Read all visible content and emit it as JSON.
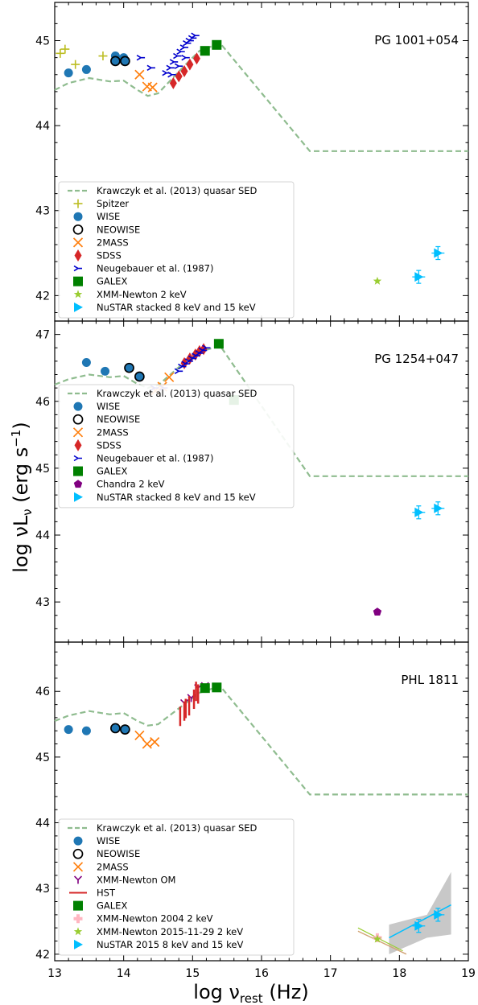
{
  "figure": {
    "ylabel_main": "log νL",
    "ylabel_sub": "ν",
    "ylabel_units": " (erg s",
    "ylabel_exp": "−1",
    "ylabel_close": ")",
    "xlabel_main": "log ν",
    "xlabel_sub": "rest",
    "xlabel_units": " (Hz)"
  },
  "colors": {
    "sed": "#8fbc8f",
    "spitzer": "#bcbd22",
    "wise": "#1f77b4",
    "neowise": "#000000",
    "twomass": "#ff7f0e",
    "sdss": "#d62728",
    "neugebauer": "#0000cd",
    "galex": "#008000",
    "xmm2kev": "#9acd32",
    "chandra": "#800080",
    "nustar": "#00bfff",
    "xmm_om": "#800080",
    "hst": "#d62728",
    "xmm2004": "#ffb6c1"
  },
  "chart_data": [
    {
      "type": "scatter",
      "title": "PG 1001+054",
      "xlim": [
        13,
        19
      ],
      "ylim": [
        41.7,
        45.45
      ],
      "xticks": [
        13,
        14,
        15,
        16,
        17,
        18,
        19
      ],
      "yticks": [
        42,
        43,
        44,
        45
      ],
      "legend_position": "lower-left",
      "sed": {
        "name": "Krawczyk et al. (2013) quasar SED",
        "x": [
          13.0,
          13.2,
          13.5,
          13.8,
          14.0,
          14.2,
          14.35,
          14.5,
          14.7,
          14.9,
          15.1,
          15.4,
          16.7,
          19.0
        ],
        "y": [
          44.42,
          44.5,
          44.56,
          44.52,
          44.53,
          44.42,
          44.35,
          44.38,
          44.55,
          44.72,
          44.88,
          44.97,
          43.7,
          43.7
        ]
      },
      "series": [
        {
          "name": "Spitzer",
          "marker": "plus",
          "color_key": "spitzer",
          "x": [
            13.08,
            13.15,
            13.3,
            13.7
          ],
          "y": [
            44.85,
            44.9,
            44.72,
            44.82
          ]
        },
        {
          "name": "WISE",
          "marker": "circle",
          "color_key": "wise",
          "x": [
            13.2,
            13.46,
            13.88,
            14.0
          ],
          "y": [
            44.62,
            44.66,
            44.82,
            44.8
          ]
        },
        {
          "name": "NEOWISE",
          "marker": "open-circle",
          "color_key": "neowise",
          "x": [
            13.88,
            14.02
          ],
          "y": [
            44.76,
            44.76
          ]
        },
        {
          "name": "2MASS",
          "marker": "x",
          "color_key": "twomass",
          "x": [
            14.23,
            14.34,
            14.42
          ],
          "y": [
            44.6,
            44.46,
            44.45
          ]
        },
        {
          "name": "SDSS",
          "marker": "diamond",
          "color_key": "sdss",
          "x": [
            14.72,
            14.8,
            14.88,
            14.96,
            15.06
          ],
          "y": [
            44.5,
            44.58,
            44.64,
            44.72,
            44.79
          ]
        },
        {
          "name": "Neugebauer et al. (1987)",
          "marker": "tri",
          "color_key": "neugebauer",
          "x": [
            14.25,
            14.4,
            14.62,
            14.68,
            14.73,
            14.78,
            14.83,
            14.88,
            14.92,
            14.96,
            15.0,
            15.04,
            14.7,
            14.8,
            14.9
          ],
          "y": [
            44.8,
            44.68,
            44.62,
            44.68,
            44.75,
            44.82,
            44.87,
            44.92,
            44.97,
            45.0,
            45.03,
            45.06,
            44.6,
            44.7,
            44.8
          ]
        },
        {
          "name": "GALEX",
          "marker": "square",
          "color_key": "galex",
          "x": [
            15.18,
            15.35
          ],
          "y": [
            44.88,
            44.95
          ]
        },
        {
          "name": "XMM-Newton 2 keV",
          "marker": "star",
          "color_key": "xmm2kev",
          "x": [
            17.68
          ],
          "y": [
            42.17
          ]
        },
        {
          "name": "NuSTAR stacked 8 keV and 15 keV",
          "marker": "triangle-right",
          "color_key": "nustar",
          "x": [
            18.28,
            18.56
          ],
          "y": [
            42.22,
            42.5
          ]
        }
      ]
    },
    {
      "type": "scatter",
      "title": "PG 1254+047",
      "xlim": [
        13,
        19
      ],
      "ylim": [
        42.4,
        47.2
      ],
      "xticks": [
        13,
        14,
        15,
        16,
        17,
        18,
        19
      ],
      "yticks": [
        43,
        44,
        45,
        46,
        47
      ],
      "legend_position": "lower-left",
      "sed": {
        "name": "Krawczyk et al. (2013) quasar SED",
        "x": [
          13.0,
          13.2,
          13.5,
          13.8,
          14.0,
          14.2,
          14.35,
          14.5,
          14.7,
          14.9,
          15.1,
          15.4,
          16.7,
          19.0
        ],
        "y": [
          46.25,
          46.33,
          46.4,
          46.36,
          46.38,
          46.26,
          46.2,
          46.24,
          46.42,
          46.6,
          46.74,
          46.83,
          44.88,
          44.88
        ]
      },
      "series": [
        {
          "name": "WISE",
          "marker": "circle",
          "color_key": "wise",
          "x": [
            13.46,
            13.73,
            14.08,
            14.23
          ],
          "y": [
            46.58,
            46.45,
            46.5,
            46.37
          ]
        },
        {
          "name": "NEOWISE",
          "marker": "open-circle",
          "color_key": "neowise",
          "x": [
            14.08,
            14.23
          ],
          "y": [
            46.5,
            46.37
          ]
        },
        {
          "name": "2MASS",
          "marker": "x",
          "color_key": "twomass",
          "x": [
            14.46,
            14.56,
            14.66
          ],
          "y": [
            46.16,
            46.22,
            46.36
          ]
        },
        {
          "name": "SDSS",
          "marker": "diamond",
          "color_key": "sdss",
          "x": [
            14.88,
            14.96,
            15.04,
            15.1,
            15.16
          ],
          "y": [
            46.57,
            46.64,
            46.7,
            46.75,
            46.78
          ]
        },
        {
          "name": "Neugebauer et al. (1987)",
          "marker": "tri",
          "color_key": "neugebauer",
          "x": [
            14.45,
            14.58,
            14.8,
            14.85,
            14.9,
            14.95,
            15.0,
            15.05,
            15.1,
            15.15,
            15.2
          ],
          "y": [
            46.2,
            46.2,
            46.45,
            46.52,
            46.56,
            46.6,
            46.64,
            46.68,
            46.72,
            46.76,
            46.8
          ]
        },
        {
          "name": "GALEX",
          "marker": "square",
          "color_key": "galex",
          "x": [
            15.38,
            15.6
          ],
          "y": [
            46.86,
            46.02
          ]
        },
        {
          "name": "Chandra 2 keV",
          "marker": "pentagon",
          "color_key": "chandra",
          "x": [
            17.68
          ],
          "y": [
            42.85
          ]
        },
        {
          "name": "NuSTAR stacked 8 keV and 15 keV",
          "marker": "triangle-right",
          "color_key": "nustar",
          "x": [
            18.28,
            18.56
          ],
          "y": [
            44.34,
            44.4
          ]
        }
      ]
    },
    {
      "type": "scatter",
      "title": "PHL 1811",
      "xlim": [
        13,
        19
      ],
      "ylim": [
        41.9,
        46.75
      ],
      "xticks": [
        13,
        14,
        15,
        16,
        17,
        18,
        19
      ],
      "yticks": [
        42,
        43,
        44,
        45,
        46
      ],
      "legend_position": "lower-left",
      "sed": {
        "name": "Krawczyk et al. (2013) quasar SED",
        "x": [
          13.0,
          13.2,
          13.5,
          13.8,
          14.0,
          14.2,
          14.35,
          14.5,
          14.7,
          14.9,
          15.1,
          15.4,
          16.7,
          19.0
        ],
        "y": [
          45.55,
          45.63,
          45.7,
          45.65,
          45.67,
          45.55,
          45.48,
          45.5,
          45.66,
          45.82,
          45.98,
          46.08,
          44.43,
          44.43
        ]
      },
      "series": [
        {
          "name": "WISE",
          "marker": "circle",
          "color_key": "wise",
          "x": [
            13.2,
            13.46,
            13.88,
            14.02
          ],
          "y": [
            45.42,
            45.4,
            45.44,
            45.42
          ]
        },
        {
          "name": "NEOWISE",
          "marker": "open-circle",
          "color_key": "neowise",
          "x": [
            13.88,
            14.02
          ],
          "y": [
            45.44,
            45.42
          ]
        },
        {
          "name": "2MASS",
          "marker": "x",
          "color_key": "twomass",
          "x": [
            14.23,
            14.34,
            14.45
          ],
          "y": [
            45.33,
            45.2,
            45.23
          ]
        },
        {
          "name": "XMM-Newton OM",
          "marker": "tri-down",
          "color_key": "xmm_om",
          "x": [
            14.88,
            14.98,
            15.08,
            15.18
          ],
          "y": [
            45.82,
            45.9,
            46.05,
            46.08
          ]
        },
        {
          "name": "HST",
          "marker": "line",
          "color_key": "hst",
          "x": [
            14.82,
            14.88,
            14.95,
            15.02,
            15.08,
            14.9,
            15.05
          ],
          "y": [
            45.62,
            45.7,
            45.78,
            45.88,
            45.96,
            45.74,
            46.0
          ]
        },
        {
          "name": "GALEX",
          "marker": "square",
          "color_key": "galex",
          "x": [
            15.18,
            15.35
          ],
          "y": [
            46.05,
            46.06
          ]
        },
        {
          "name": "XMM-Newton 2004 2 keV",
          "marker": "plus-bold",
          "color_key": "xmm2004",
          "x": [
            17.68
          ],
          "y": [
            42.25
          ]
        },
        {
          "name": "XMM-Newton 2015-11-29 2 keV",
          "marker": "star",
          "color_key": "xmm2kev",
          "x": [
            17.68
          ],
          "y": [
            42.23
          ]
        },
        {
          "name": "NuSTAR 2015 8 keV and 15 keV",
          "marker": "triangle-right",
          "color_key": "nustar",
          "x": [
            18.28,
            18.56
          ],
          "y": [
            42.43,
            42.6
          ]
        }
      ]
    }
  ]
}
